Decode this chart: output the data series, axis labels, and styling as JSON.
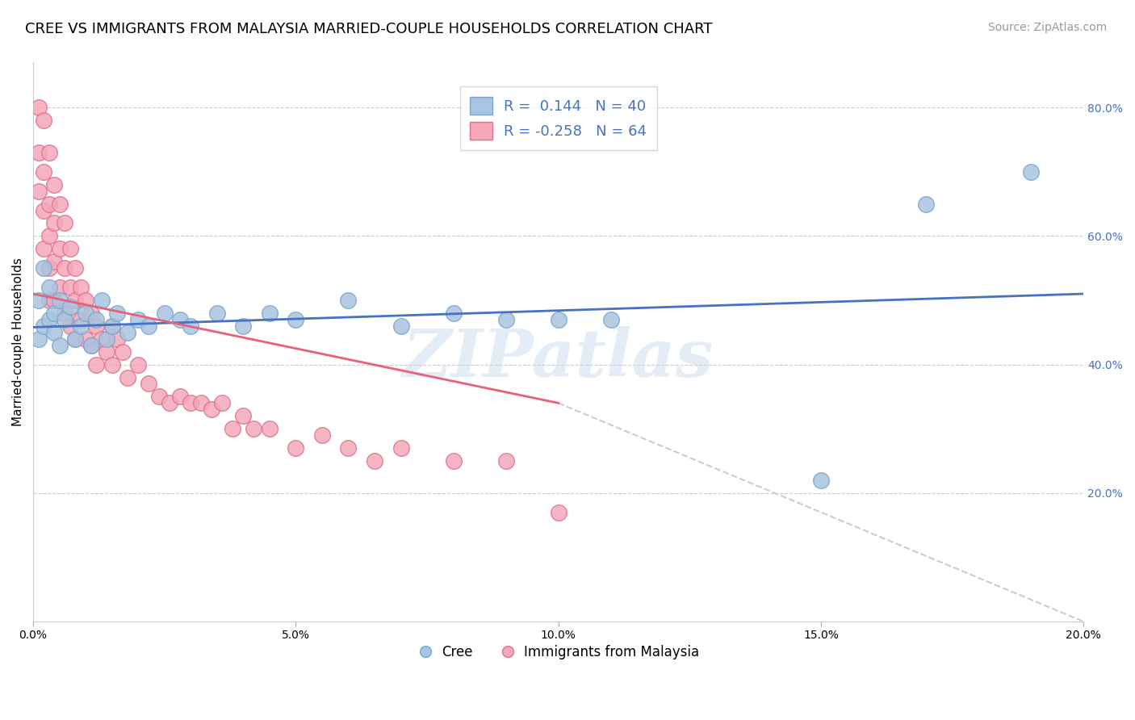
{
  "title": "CREE VS IMMIGRANTS FROM MALAYSIA MARRIED-COUPLE HOUSEHOLDS CORRELATION CHART",
  "source": "Source: ZipAtlas.com",
  "ylabel": "Married-couple Households",
  "x_min": 0.0,
  "x_max": 0.2,
  "y_min": 0.0,
  "y_max": 0.87,
  "y_ticks_right": [
    0.2,
    0.4,
    0.6,
    0.8
  ],
  "y_tick_labels_right": [
    "20.0%",
    "40.0%",
    "60.0%",
    "80.0%"
  ],
  "x_ticks": [
    0.0,
    0.05,
    0.1,
    0.15,
    0.2
  ],
  "x_tick_labels": [
    "0.0%",
    "5.0%",
    "10.0%",
    "15.0%",
    "20.0%"
  ],
  "grid_color": "#cccccc",
  "background_color": "#ffffff",
  "cree_color": "#a8c4e0",
  "malaysia_color": "#f4a8b8",
  "cree_edge_color": "#7ba7cc",
  "malaysia_edge_color": "#e07090",
  "cree_line_color": "#4472c4",
  "malaysia_line_color": "#e8607a",
  "accent_color": "#4472c4",
  "R_cree": 0.144,
  "N_cree": 40,
  "R_malaysia": -0.258,
  "N_malaysia": 64,
  "legend_label_cree": "Cree",
  "legend_label_malaysia": "Immigrants from Malaysia",
  "cree_x": [
    0.001,
    0.001,
    0.002,
    0.002,
    0.003,
    0.003,
    0.004,
    0.004,
    0.005,
    0.005,
    0.006,
    0.007,
    0.008,
    0.009,
    0.01,
    0.011,
    0.012,
    0.013,
    0.014,
    0.015,
    0.016,
    0.018,
    0.02,
    0.022,
    0.025,
    0.028,
    0.03,
    0.035,
    0.04,
    0.045,
    0.05,
    0.06,
    0.07,
    0.08,
    0.09,
    0.1,
    0.11,
    0.15,
    0.17,
    0.19
  ],
  "cree_y": [
    0.5,
    0.44,
    0.55,
    0.46,
    0.52,
    0.47,
    0.48,
    0.45,
    0.5,
    0.43,
    0.47,
    0.49,
    0.44,
    0.46,
    0.48,
    0.43,
    0.47,
    0.5,
    0.44,
    0.46,
    0.48,
    0.45,
    0.47,
    0.46,
    0.48,
    0.47,
    0.46,
    0.48,
    0.46,
    0.48,
    0.47,
    0.5,
    0.46,
    0.48,
    0.47,
    0.47,
    0.47,
    0.22,
    0.65,
    0.7
  ],
  "malaysia_x": [
    0.001,
    0.001,
    0.001,
    0.002,
    0.002,
    0.002,
    0.002,
    0.003,
    0.003,
    0.003,
    0.003,
    0.003,
    0.004,
    0.004,
    0.004,
    0.004,
    0.005,
    0.005,
    0.005,
    0.006,
    0.006,
    0.006,
    0.007,
    0.007,
    0.007,
    0.008,
    0.008,
    0.008,
    0.009,
    0.009,
    0.01,
    0.01,
    0.011,
    0.011,
    0.012,
    0.012,
    0.013,
    0.014,
    0.015,
    0.015,
    0.016,
    0.017,
    0.018,
    0.02,
    0.022,
    0.024,
    0.026,
    0.028,
    0.03,
    0.032,
    0.034,
    0.036,
    0.038,
    0.04,
    0.042,
    0.045,
    0.05,
    0.055,
    0.06,
    0.065,
    0.07,
    0.08,
    0.09,
    0.1
  ],
  "malaysia_y": [
    0.8,
    0.73,
    0.67,
    0.78,
    0.7,
    0.64,
    0.58,
    0.73,
    0.65,
    0.6,
    0.55,
    0.5,
    0.68,
    0.62,
    0.56,
    0.5,
    0.65,
    0.58,
    0.52,
    0.62,
    0.55,
    0.48,
    0.58,
    0.52,
    0.46,
    0.55,
    0.5,
    0.44,
    0.52,
    0.47,
    0.5,
    0.44,
    0.48,
    0.43,
    0.46,
    0.4,
    0.44,
    0.42,
    0.46,
    0.4,
    0.44,
    0.42,
    0.38,
    0.4,
    0.37,
    0.35,
    0.34,
    0.35,
    0.34,
    0.34,
    0.33,
    0.34,
    0.3,
    0.32,
    0.3,
    0.3,
    0.27,
    0.29,
    0.27,
    0.25,
    0.27,
    0.25,
    0.25,
    0.17
  ],
  "cree_regression_x0": 0.0,
  "cree_regression_y0": 0.458,
  "cree_regression_x1": 0.2,
  "cree_regression_y1": 0.51,
  "malaysia_regression_x0": 0.0,
  "malaysia_regression_y0": 0.51,
  "malaysia_regression_x1_solid": 0.1,
  "malaysia_regression_y1_solid": 0.34,
  "malaysia_regression_x1_dash": 0.2,
  "malaysia_regression_y1_dash": 0.0,
  "watermark": "ZIPatlas",
  "title_fontsize": 13,
  "axis_fontsize": 11,
  "tick_fontsize": 10,
  "source_fontsize": 10
}
